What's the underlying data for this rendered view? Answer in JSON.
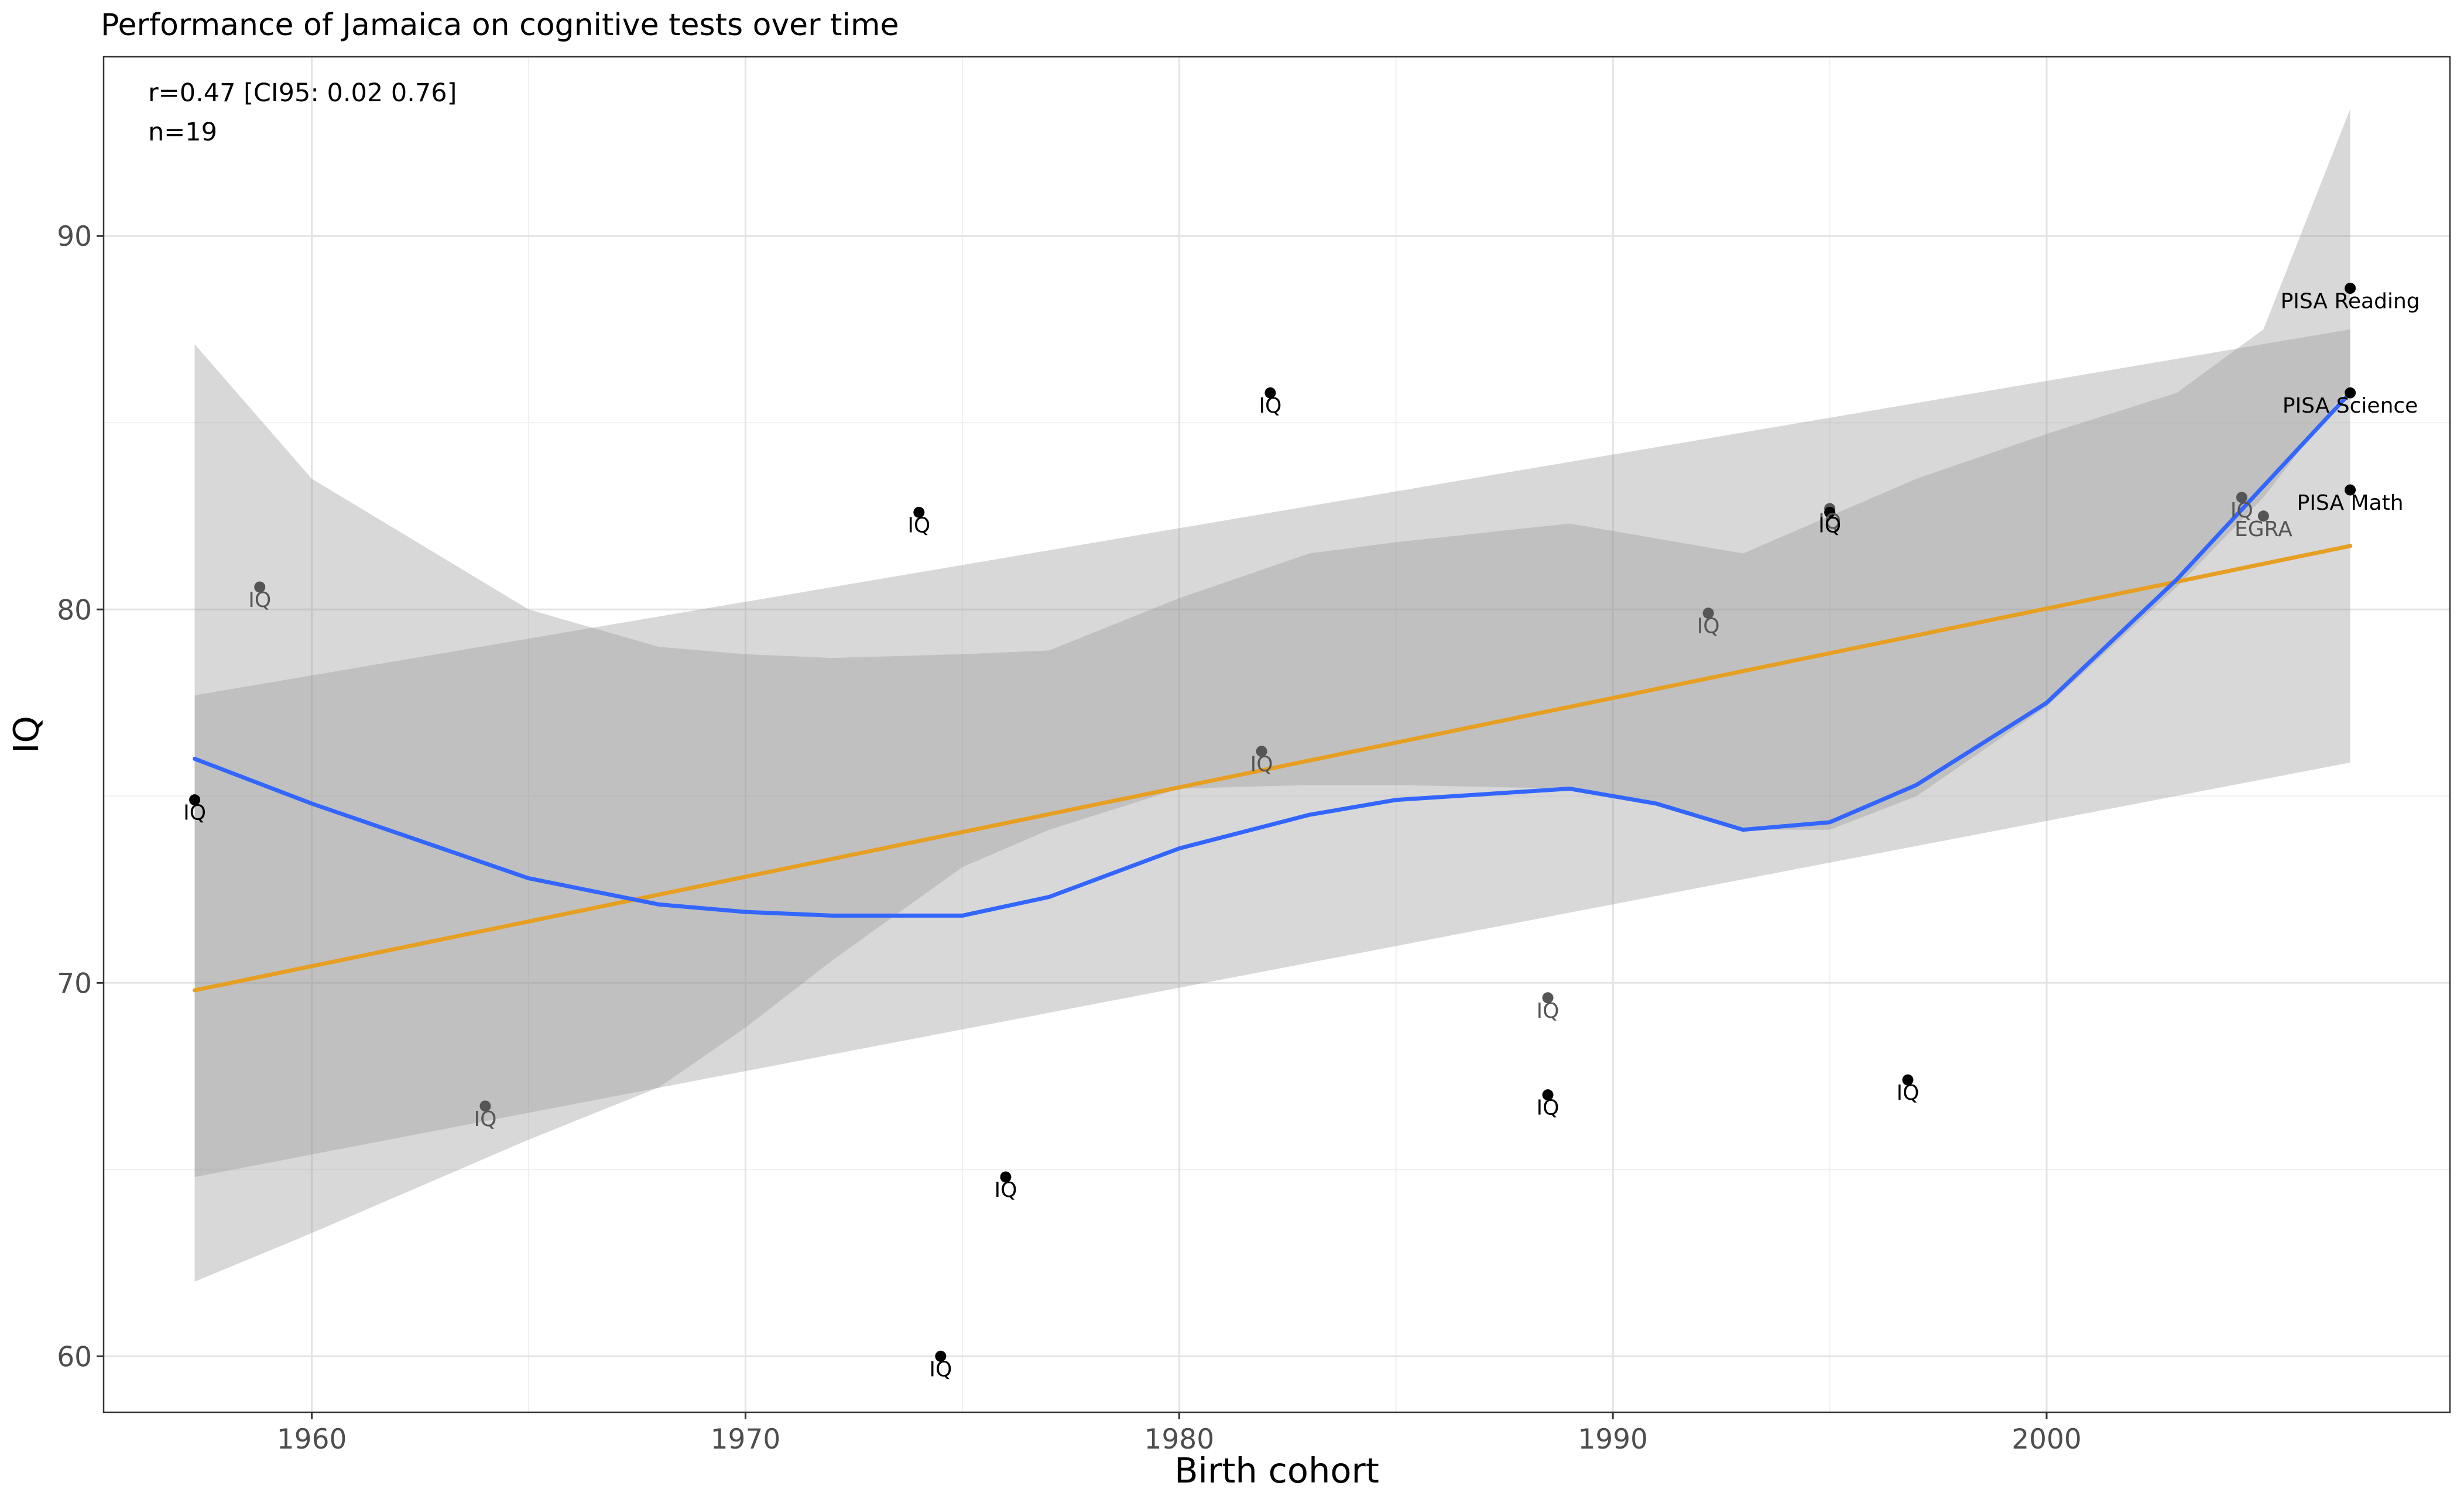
{
  "chart_data": {
    "type": "scatter",
    "title": "Performance of Jamaica on cognitive tests over time",
    "xlabel": "Birth cohort",
    "ylabel": "IQ",
    "xlim": [
      1955.2,
      2009.3
    ],
    "ylim": [
      58.5,
      94.8
    ],
    "x_ticks": [
      1960,
      1970,
      1980,
      1990,
      2000
    ],
    "x_tick_labels": [
      "1960",
      "1970",
      "1980",
      "1990",
      "2000"
    ],
    "y_ticks": [
      60,
      70,
      80,
      90
    ],
    "y_tick_labels": [
      "60",
      "70",
      "80",
      "90"
    ],
    "grid": true,
    "legend": "none",
    "stats": [
      "r=0.47 [CI95: 0.02 0.76]",
      "n=19"
    ],
    "points": [
      {
        "x": 1957.3,
        "y": 74.9,
        "label": "IQ",
        "color": "#000000"
      },
      {
        "x": 1958.8,
        "y": 80.6,
        "label": "IQ",
        "color": "#555555"
      },
      {
        "x": 1964.0,
        "y": 66.7,
        "label": "IQ",
        "color": "#555555"
      },
      {
        "x": 1974.0,
        "y": 82.6,
        "label": "IQ",
        "color": "#000000"
      },
      {
        "x": 1974.5,
        "y": 60.0,
        "label": "IQ",
        "color": "#000000"
      },
      {
        "x": 1976.0,
        "y": 64.8,
        "label": "IQ",
        "color": "#000000"
      },
      {
        "x": 1981.9,
        "y": 76.2,
        "label": "IQ",
        "color": "#555555"
      },
      {
        "x": 1982.1,
        "y": 85.8,
        "label": "IQ",
        "color": "#000000"
      },
      {
        "x": 1988.5,
        "y": 69.6,
        "label": "IQ",
        "color": "#555555"
      },
      {
        "x": 1988.5,
        "y": 67.0,
        "label": "IQ",
        "color": "#000000"
      },
      {
        "x": 1992.2,
        "y": 79.9,
        "label": "IQ",
        "color": "#555555"
      },
      {
        "x": 1995.0,
        "y": 82.7,
        "label": "IQ",
        "color": "#555555"
      },
      {
        "x": 1995.0,
        "y": 82.6,
        "label": "IQ",
        "color": "#000000"
      },
      {
        "x": 1996.8,
        "y": 67.4,
        "label": "IQ",
        "color": "#000000"
      },
      {
        "x": 2004.5,
        "y": 83.0,
        "label": "IQ",
        "color": "#555555"
      },
      {
        "x": 2005.0,
        "y": 82.5,
        "label": "EGRA",
        "color": "#555555"
      },
      {
        "x": 2007.0,
        "y": 88.6,
        "label": "PISA Reading",
        "color": "#000000"
      },
      {
        "x": 2007.0,
        "y": 85.8,
        "label": "PISA Science",
        "color": "#000000"
      },
      {
        "x": 2007.0,
        "y": 83.2,
        "label": "PISA Math",
        "color": "#000000"
      }
    ],
    "series": [
      {
        "type": "linear-fit",
        "color": "#e69f22",
        "x": [
          1957.3,
          2007.0
        ],
        "y": [
          69.8,
          81.7
        ],
        "ci_lower": [
          64.8,
          75.9
        ],
        "ci_upper": [
          77.7,
          87.5
        ]
      },
      {
        "type": "loess",
        "color": "#3366ff",
        "x": [
          1957.3,
          1960,
          1965,
          1968,
          1970,
          1972,
          1975,
          1977,
          1980,
          1983,
          1985,
          1989,
          1991,
          1993,
          1995,
          1997,
          2000,
          2003,
          2005,
          2007
        ],
        "y": [
          76.0,
          74.8,
          72.8,
          72.1,
          71.9,
          71.8,
          71.8,
          72.3,
          73.6,
          74.5,
          74.9,
          75.2,
          74.8,
          74.1,
          74.3,
          75.3,
          77.5,
          80.8,
          83.3,
          85.8
        ],
        "ci_lower": [
          62.0,
          63.3,
          65.8,
          67.2,
          68.8,
          70.6,
          73.1,
          74.1,
          75.2,
          75.3,
          75.3,
          75.2,
          74.8,
          74.1,
          74.1,
          75.0,
          77.4,
          80.6,
          83.0,
          86.0
        ],
        "ci_upper": [
          87.1,
          83.5,
          80.0,
          79.0,
          78.8,
          78.7,
          78.8,
          78.9,
          80.3,
          81.5,
          81.8,
          82.3,
          81.9,
          81.5,
          82.5,
          83.5,
          84.7,
          85.8,
          87.5,
          93.4
        ]
      }
    ],
    "ci_band_color": "#999999"
  }
}
